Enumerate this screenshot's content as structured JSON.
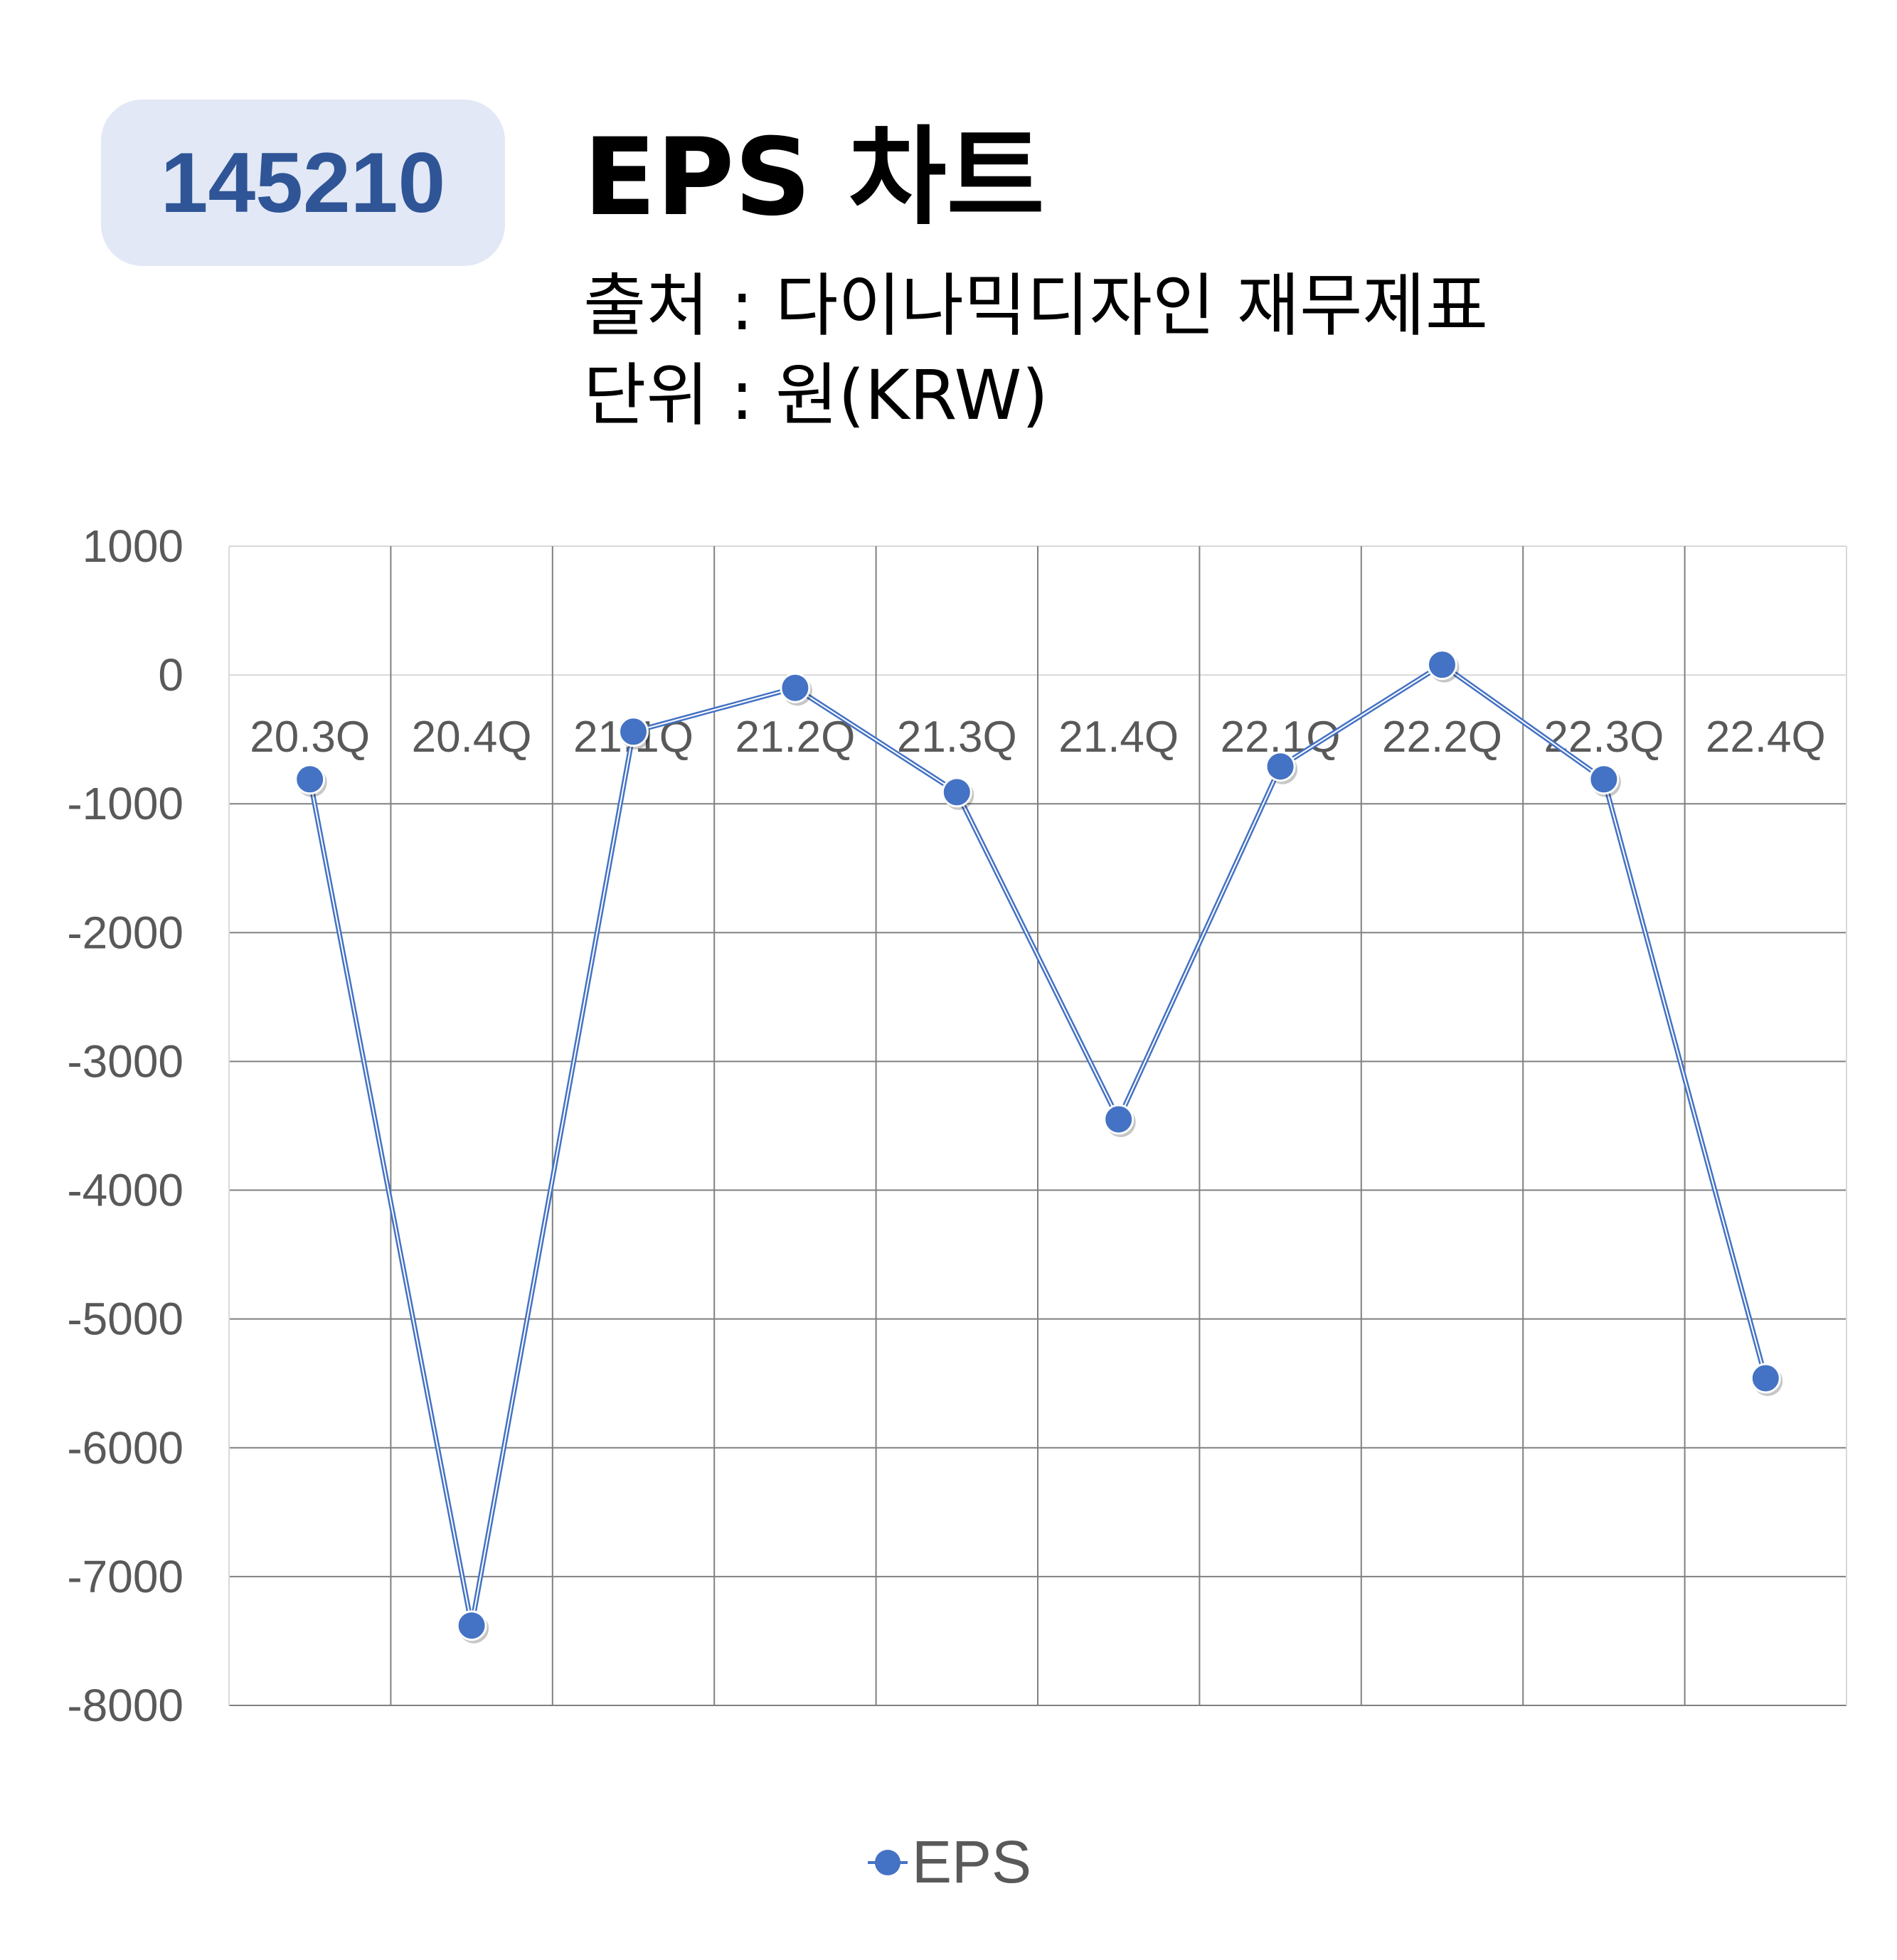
{
  "header": {
    "code": "145210",
    "title": "EPS 차트",
    "source": "출처 : 다이나믹디자인 재무제표",
    "unit": "단위 : 원(KRW)"
  },
  "chart_data": {
    "type": "line",
    "categories": [
      "20.3Q",
      "20.4Q",
      "21.1Q",
      "21.2Q",
      "21.3Q",
      "21.4Q",
      "22.1Q",
      "22.2Q",
      "22.3Q",
      "22.4Q"
    ],
    "series": [
      {
        "name": "EPS",
        "values": [
          -810,
          -7380,
          -440,
          -100,
          -910,
          -3450,
          -710,
          80,
          -810,
          -5460
        ]
      }
    ],
    "yticks": [
      "1000",
      "0",
      "-1000",
      "-2000",
      "-3000",
      "-4000",
      "-5000",
      "-6000",
      "-7000",
      "-8000"
    ],
    "ylim": [
      -8000,
      1000
    ],
    "grid": true,
    "legend": "bottom",
    "colors": {
      "series": "#4472c4",
      "grid": "#808080",
      "axis_text": "#595959"
    }
  }
}
